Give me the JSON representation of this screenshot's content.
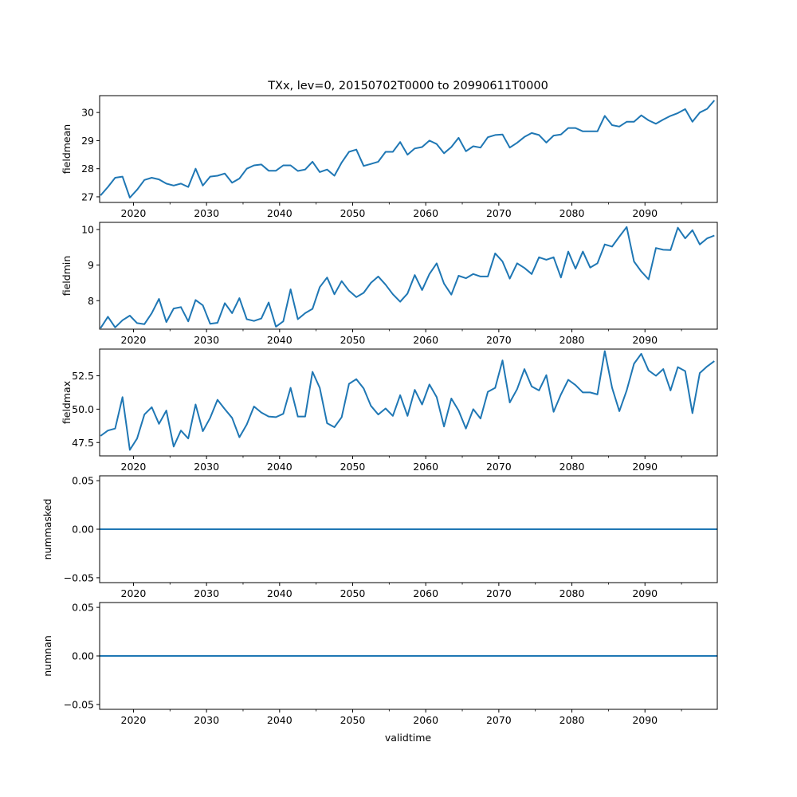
{
  "chart_data": {
    "type": "line",
    "title": "TXx, lev=0, 20150702T0000 to 20990611T0000",
    "xlabel": "validtime",
    "xlim": [
      2015.37,
      2099.9
    ],
    "x_ticks": [
      2020,
      2030,
      2040,
      2050,
      2060,
      2070,
      2080,
      2090
    ],
    "x_tick_labels": [
      "2020",
      "2030",
      "2040",
      "2050",
      "2060",
      "2070",
      "2080",
      "2090"
    ],
    "x_minor_ticks": [
      2025,
      2035,
      2045,
      2055,
      2065,
      2075,
      2085,
      2095
    ],
    "x_start": 2015.5,
    "x_step": 1,
    "line_color": "#1f77b4",
    "panels": [
      {
        "name": "fieldmean",
        "ylabel": "fieldmean",
        "ylim": [
          26.8,
          30.6
        ],
        "y_ticks": [
          27,
          28,
          29,
          30
        ],
        "y_tick_labels": [
          "27",
          "28",
          "29",
          "30"
        ],
        "values": [
          27.05,
          27.35,
          27.68,
          27.72,
          26.97,
          27.25,
          27.6,
          27.68,
          27.62,
          27.47,
          27.4,
          27.47,
          27.35,
          28.0,
          27.4,
          27.72,
          27.75,
          27.83,
          27.5,
          27.65,
          28.0,
          28.12,
          28.15,
          27.93,
          27.93,
          28.12,
          28.12,
          27.92,
          27.97,
          28.25,
          27.88,
          27.97,
          27.75,
          28.22,
          28.6,
          28.68,
          28.1,
          28.17,
          28.25,
          28.6,
          28.6,
          28.95,
          28.5,
          28.72,
          28.77,
          29.0,
          28.88,
          28.55,
          28.77,
          29.1,
          28.62,
          28.8,
          28.75,
          29.12,
          29.2,
          29.22,
          28.75,
          28.92,
          29.13,
          29.27,
          29.2,
          28.93,
          29.18,
          29.22,
          29.45,
          29.45,
          29.33,
          29.33,
          29.33,
          29.88,
          29.55,
          29.5,
          29.67,
          29.67,
          29.9,
          29.72,
          29.6,
          29.75,
          29.88,
          29.98,
          30.12,
          29.67,
          30.0,
          30.13,
          30.43
        ]
      },
      {
        "name": "fieldmin",
        "ylabel": "fieldmin",
        "ylim": [
          7.2,
          10.2
        ],
        "y_ticks": [
          8,
          9,
          10
        ],
        "y_tick_labels": [
          "8",
          "9",
          "10"
        ],
        "values": [
          7.23,
          7.55,
          7.25,
          7.45,
          7.58,
          7.37,
          7.34,
          7.65,
          8.05,
          7.4,
          7.78,
          7.82,
          7.42,
          8.02,
          7.87,
          7.35,
          7.38,
          7.93,
          7.65,
          8.07,
          7.48,
          7.43,
          7.5,
          7.95,
          7.27,
          7.42,
          8.32,
          7.48,
          7.65,
          7.77,
          8.38,
          8.65,
          8.18,
          8.55,
          8.28,
          8.1,
          8.22,
          8.5,
          8.68,
          8.45,
          8.18,
          7.97,
          8.2,
          8.72,
          8.3,
          8.75,
          9.05,
          8.48,
          8.17,
          8.7,
          8.63,
          8.75,
          8.68,
          8.68,
          9.33,
          9.1,
          8.62,
          9.05,
          8.92,
          8.75,
          9.22,
          9.15,
          9.22,
          8.65,
          9.38,
          8.9,
          9.38,
          8.93,
          9.05,
          9.58,
          9.52,
          9.8,
          10.07,
          9.1,
          8.82,
          8.6,
          9.48,
          9.43,
          9.42,
          10.05,
          9.75,
          9.98,
          9.58,
          9.75,
          9.83
        ]
      },
      {
        "name": "fieldmax",
        "ylabel": "fieldmax",
        "ylim": [
          46.5,
          54.5
        ],
        "y_ticks": [
          47.5,
          50.0,
          52.5
        ],
        "y_tick_labels": [
          "47.5",
          "50.0",
          "52.5"
        ],
        "values": [
          48.0,
          48.4,
          48.55,
          50.9,
          46.95,
          47.8,
          49.6,
          50.15,
          48.9,
          49.9,
          47.2,
          48.4,
          47.8,
          50.35,
          48.35,
          49.35,
          50.7,
          50.0,
          49.35,
          47.9,
          48.85,
          50.2,
          49.75,
          49.45,
          49.4,
          49.65,
          51.6,
          49.45,
          49.45,
          52.8,
          51.6,
          48.95,
          48.65,
          49.4,
          51.9,
          52.25,
          51.55,
          50.25,
          49.6,
          50.05,
          49.5,
          51.05,
          49.5,
          51.45,
          50.35,
          51.85,
          50.9,
          48.7,
          50.8,
          49.9,
          48.55,
          50.0,
          49.3,
          51.3,
          51.6,
          53.65,
          50.5,
          51.5,
          53.0,
          51.7,
          51.4,
          52.55,
          49.8,
          51.1,
          52.2,
          51.8,
          51.25,
          51.25,
          51.1,
          54.35,
          51.6,
          49.85,
          51.4,
          53.4,
          54.15,
          52.9,
          52.5,
          53.0,
          51.4,
          53.15,
          52.85,
          49.7,
          52.7,
          53.2,
          53.6
        ]
      },
      {
        "name": "nummasked",
        "ylabel": "nummasked",
        "ylim": [
          -0.055,
          0.055
        ],
        "y_ticks": [
          -0.05,
          0.0,
          0.05
        ],
        "y_tick_labels": [
          "−0.05",
          "0.00",
          "0.05"
        ],
        "constant": 0
      },
      {
        "name": "numnan",
        "ylabel": "numnan",
        "ylim": [
          -0.055,
          0.055
        ],
        "y_ticks": [
          -0.05,
          0.0,
          0.05
        ],
        "y_tick_labels": [
          "−0.05",
          "0.00",
          "0.05"
        ],
        "constant": 0
      }
    ]
  }
}
